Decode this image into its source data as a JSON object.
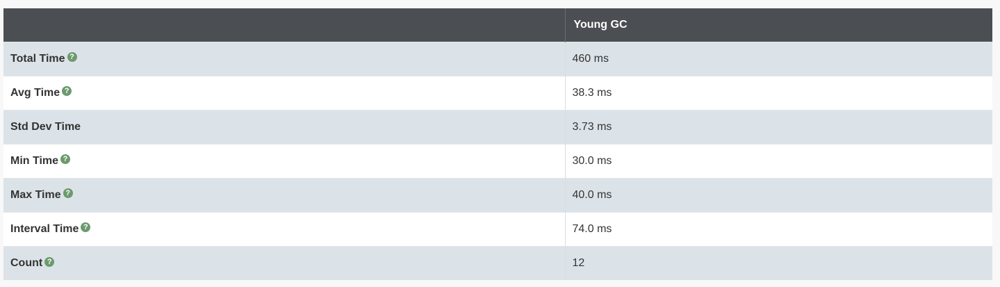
{
  "table": {
    "header": {
      "label_column": "",
      "value_column": "Young GC"
    },
    "rows": [
      {
        "label": "Total Time",
        "value": "460 ms",
        "help_icon": "question-circle-icon"
      },
      {
        "label": "Avg Time",
        "value": "38.3 ms",
        "help_icon": "question-circle-icon"
      },
      {
        "label": "Std Dev Time",
        "value": "3.73 ms",
        "help_icon": null
      },
      {
        "label": "Min Time",
        "value": "30.0 ms",
        "help_icon": "question-circle-icon"
      },
      {
        "label": "Max Time",
        "value": "40.0 ms",
        "help_icon": "question-circle-icon"
      },
      {
        "label": "Interval Time",
        "value": "74.0 ms",
        "help_icon": "question-circle-icon"
      },
      {
        "label": "Count",
        "value": "12",
        "help_icon": "question-circle-icon"
      }
    ]
  },
  "colors": {
    "header_bg": "#4b4e53",
    "row_odd_bg": "#dce3e8",
    "row_even_bg": "#ffffff",
    "help_icon": "#6c9a6e"
  }
}
